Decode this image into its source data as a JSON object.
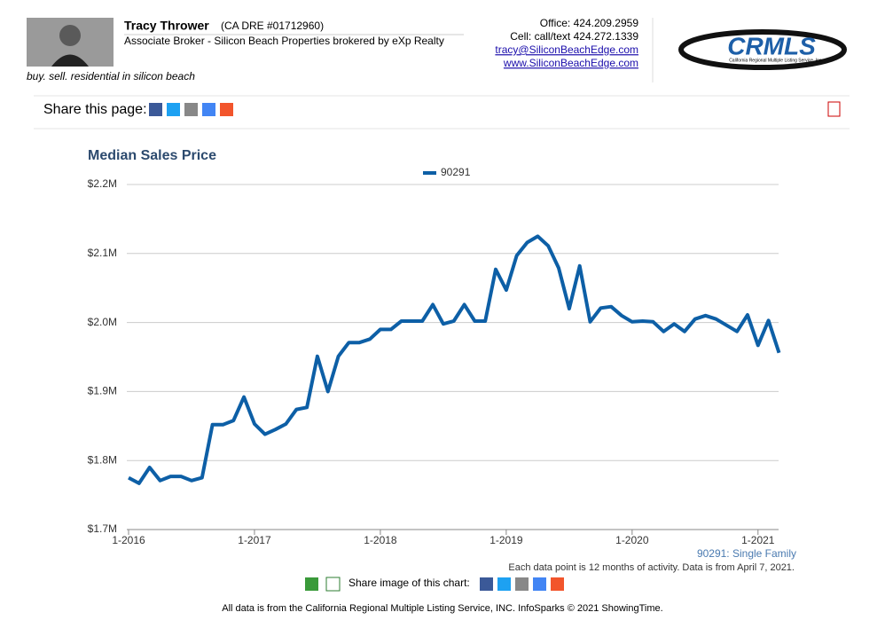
{
  "header": {
    "name": "Tracy Thrower",
    "license": "(CA DRE #01712960)",
    "role": "Associate Broker - Silicon Beach Properties brokered by eXp Realty",
    "tagline": "buy. sell. residential in silicon beach",
    "office": "Office: 424.209.2959",
    "cell": "Cell: call/text 424.272.1339",
    "email": "tracy@SiliconBeachEdge.com",
    "website": "www.SiliconBeachEdge.com",
    "logo_text": "CRMLS",
    "logo_subtext": "California Regional Multiple Listing Service, Inc."
  },
  "share_page": "Share this page:",
  "chart_data": {
    "type": "line",
    "title": "Median Sales Price",
    "caption": "90291: Single Family",
    "note": "Each data point is 12 months of activity. Data is from April 7, 2021.",
    "categories": [
      "1-2016",
      null,
      null,
      null,
      null,
      null,
      null,
      null,
      null,
      null,
      null,
      null,
      "1-2017",
      null,
      null,
      null,
      null,
      null,
      null,
      null,
      null,
      null,
      null,
      null,
      "1-2018",
      null,
      null,
      null,
      null,
      null,
      null,
      null,
      null,
      null,
      null,
      null,
      "1-2019",
      null,
      null,
      null,
      null,
      null,
      null,
      null,
      null,
      null,
      null,
      null,
      "1-2020",
      null,
      null,
      null,
      null,
      null,
      null,
      null,
      null,
      null,
      null,
      null,
      "1-2021",
      null,
      null
    ],
    "series": [
      {
        "name": "90291",
        "color": "#0d5fa6",
        "values": [
          1775000,
          1767000,
          1790000,
          1771000,
          1777000,
          1777000,
          1771000,
          1775000,
          1852000,
          1852000,
          1858000,
          1892000,
          1853000,
          1838000,
          1845000,
          1853000,
          1874000,
          1877000,
          1951000,
          1900000,
          1951000,
          1971000,
          1971000,
          1976000,
          1990000,
          1990000,
          2002000,
          2002000,
          2002000,
          2026000,
          1998000,
          2002000,
          2026000,
          2002000,
          2002000,
          2077000,
          2047000,
          2097000,
          2116000,
          2125000,
          2111000,
          2079000,
          2020000,
          2082000,
          2001000,
          2021000,
          2023000,
          2010000,
          2001000,
          2002000,
          2001000,
          1987000,
          1998000,
          1987000,
          2005000,
          2010000,
          2005000,
          1996000,
          1987000,
          2011000,
          1967000,
          2003000,
          1956000
        ]
      }
    ],
    "ylim": [
      1700000,
      2200000
    ],
    "yticks": [
      {
        "value": 1700000,
        "label": "$1.7M"
      },
      {
        "value": 1800000,
        "label": "$1.8M"
      },
      {
        "value": 1900000,
        "label": "$1.9M"
      },
      {
        "value": 2000000,
        "label": "$2.0M"
      },
      {
        "value": 2100000,
        "label": "$2.1M"
      },
      {
        "value": 2200000,
        "label": "$2.2M"
      }
    ],
    "grid": true,
    "legend": "top"
  },
  "share_chart": "Share image of this chart:",
  "footer": "All data is from the California Regional Multiple Listing Service, INC. InfoSparks © 2021 ShowingTime."
}
